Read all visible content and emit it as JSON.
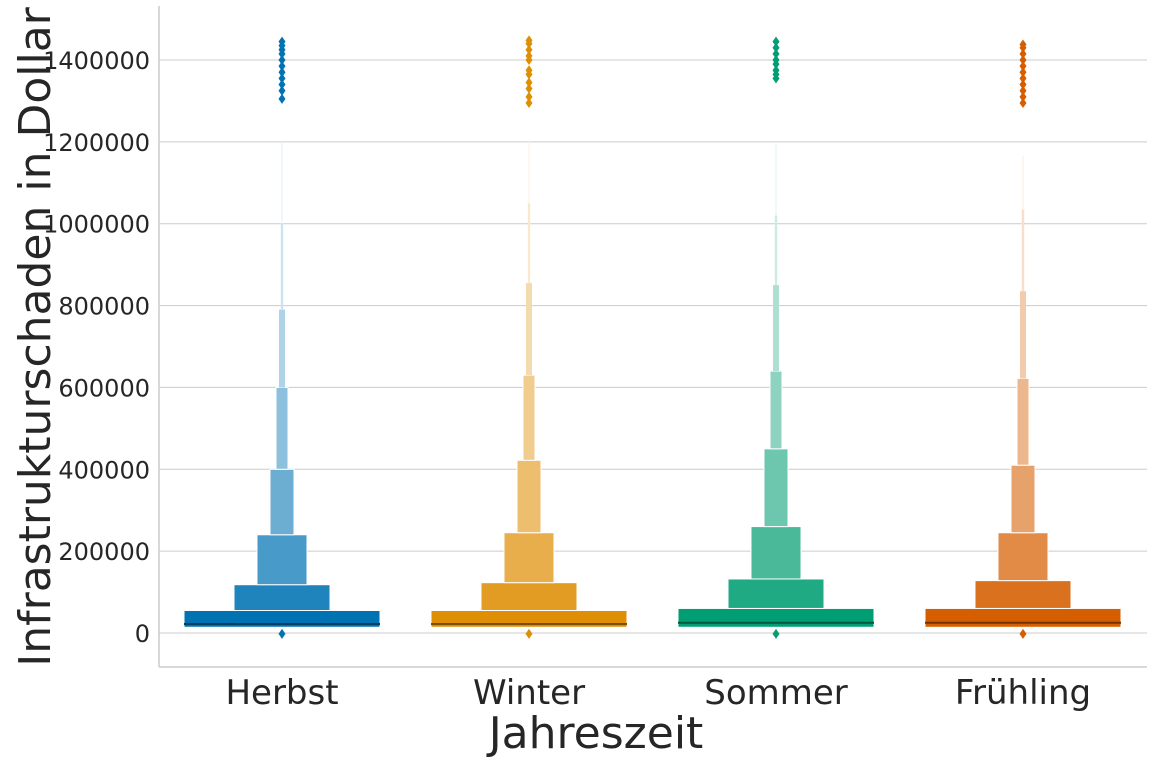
{
  "chart_data": {
    "type": "boxen",
    "title": "",
    "xlabel": "Jahreszeit",
    "ylabel": "Infrastrukturschaden in Dollar",
    "ylim": [
      -80000,
      1530000
    ],
    "yticks": [
      0,
      200000,
      400000,
      600000,
      800000,
      1000000,
      1200000,
      1400000
    ],
    "grid": "horizontal",
    "legend": "none",
    "categories": [
      "Herbst",
      "Winter",
      "Sommer",
      "Frühling"
    ],
    "series": [
      {
        "category": "Herbst",
        "color": "#0173b2",
        "median": 22000,
        "lower": 14000,
        "boxes": [
          55000,
          118000,
          240000,
          400000,
          600000,
          790000,
          1000000,
          1200000
        ],
        "outliers_low": [
          -2000
        ],
        "outliers_high": [
          1305000,
          1325000,
          1340000,
          1355000,
          1370000,
          1385000,
          1400000,
          1415000,
          1425000,
          1435000,
          1445000
        ]
      },
      {
        "category": "Winter",
        "color": "#de8f05",
        "median": 22000,
        "lower": 14000,
        "boxes": [
          55000,
          123000,
          245000,
          422000,
          630000,
          855000,
          1050000,
          1200000
        ],
        "outliers_low": [
          -2000
        ],
        "outliers_high": [
          1295000,
          1310000,
          1330000,
          1345000,
          1365000,
          1375000,
          1400000,
          1410000,
          1425000,
          1440000,
          1448000
        ]
      },
      {
        "category": "Sommer",
        "color": "#029e73",
        "median": 25000,
        "lower": 14000,
        "boxes": [
          60000,
          132000,
          260000,
          450000,
          640000,
          850000,
          1020000,
          1200000
        ],
        "outliers_low": [
          -2000
        ],
        "outliers_high": [
          1355000,
          1365000,
          1375000,
          1390000,
          1400000,
          1415000,
          1430000,
          1445000
        ]
      },
      {
        "category": "Frühling",
        "color": "#d55e00",
        "median": 25000,
        "lower": 14000,
        "boxes": [
          60000,
          128000,
          245000,
          410000,
          622000,
          835000,
          1035000,
          1165000
        ],
        "outliers_low": [
          -2000
        ],
        "outliers_high": [
          1295000,
          1310000,
          1325000,
          1340000,
          1355000,
          1370000,
          1385000,
          1400000,
          1415000,
          1430000,
          1438000
        ]
      }
    ]
  }
}
